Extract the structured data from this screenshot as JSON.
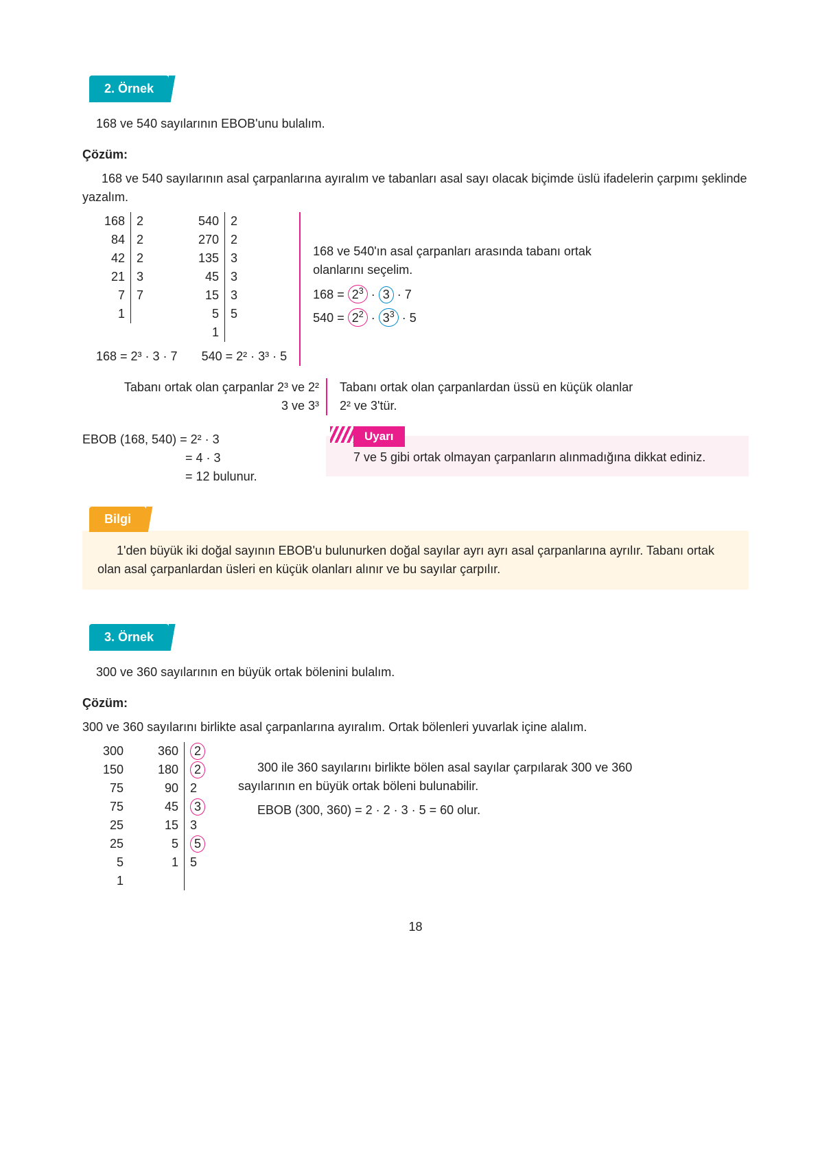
{
  "page_number": "18",
  "colors": {
    "teal": "#00a6b8",
    "pink": "#e91e8c",
    "orange": "#f5a623",
    "pink_bg": "#fdf0f5",
    "orange_bg": "#fff6e6",
    "blue": "#0088cc"
  },
  "ornek2": {
    "tab": "2. Örnek",
    "intro": "168 ve 540 sayılarının EBOB'unu bulalım.",
    "cozum_label": "Çözüm:",
    "cozum_intro": "168 ve 540 sayılarının asal çarpanlarına ayıralım ve tabanları asal sayı olacak biçimde üslü ifadelerin çarpımı şeklinde yazalım.",
    "f168": {
      "quot": [
        "168",
        "84",
        "42",
        "21",
        "7",
        "1"
      ],
      "fac": [
        "2",
        "2",
        "2",
        "3",
        "7",
        ""
      ]
    },
    "f168_eq": "168 = 2³ · 3 · 7",
    "f540": {
      "quot": [
        "540",
        "270",
        "135",
        "45",
        "15",
        "5",
        "1"
      ],
      "fac": [
        "2",
        "2",
        "3",
        "3",
        "3",
        "5",
        ""
      ]
    },
    "f540_eq": "540 = 2² · 3³ · 5",
    "right1": "168 ve 540'ın asal çarpanları arasında tabanı ortak olanlarını seçelim.",
    "taban_text_a": "Tabanı ortak olan çarpanlar 2³ ve 2²",
    "taban_text_b": "3 ve 3³",
    "right2": "Tabanı ortak olan çarpanlardan üssü en küçük olanlar 2² ve 3'tür.",
    "ebob_l1": "EBOB (168, 540) = 2² · 3",
    "ebob_l2": "= 4 · 3",
    "ebob_l3": "= 12 bulunur.",
    "uyari_label": "Uyarı",
    "uyari_text": "7 ve 5 gibi ortak olmayan çarpanların alınmadığına dikkat ediniz."
  },
  "bilgi": {
    "tab": "Bilgi",
    "text": "1'den büyük iki doğal sayının EBOB'u bulunurken doğal sayılar ayrı ayrı asal çarpanlarına ayrılır. Tabanı ortak olan asal çarpanlardan üsleri en küçük olanları alınır ve bu sayılar çarpılır."
  },
  "ornek3": {
    "tab": "3. Örnek",
    "intro": "300 ve 360 sayılarının en büyük ortak bölenini bulalım.",
    "cozum_label": "Çözüm:",
    "cozum_intro": "300 ve 360 sayılarını birlikte asal çarpanlarına ayıralım. Ortak bölenleri yuvarlak içine alalım.",
    "table": [
      {
        "a": "300",
        "b": "360",
        "f": "2",
        "circ": true
      },
      {
        "a": "150",
        "b": "180",
        "f": "2",
        "circ": true
      },
      {
        "a": "75",
        "b": "90",
        "f": "2",
        "circ": false
      },
      {
        "a": "75",
        "b": "45",
        "f": "3",
        "circ": true
      },
      {
        "a": "25",
        "b": "15",
        "f": "3",
        "circ": false
      },
      {
        "a": "25",
        "b": "5",
        "f": "5",
        "circ": true
      },
      {
        "a": "5",
        "b": "1",
        "f": "5",
        "circ": false
      },
      {
        "a": "1",
        "b": "",
        "f": "",
        "circ": false
      }
    ],
    "right1": "300 ile 360 sayılarını birlikte bölen asal sayılar çarpılarak 300 ve 360 sayılarının en büyük ortak böleni bulunabilir.",
    "right2": "EBOB (300, 360) = 2 · 2 · 3 · 5 = 60 olur."
  }
}
